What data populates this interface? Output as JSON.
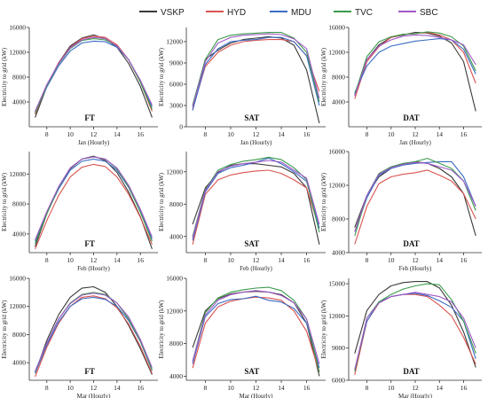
{
  "legend": [
    {
      "name": "VSKP",
      "color": "#3a3a3a"
    },
    {
      "name": "HYD",
      "color": "#d9534f"
    },
    {
      "name": "MDU",
      "color": "#3b6cc4"
    },
    {
      "name": "TVC",
      "color": "#3a9a4a"
    },
    {
      "name": "SBC",
      "color": "#a05ac8"
    }
  ],
  "chart_data": [
    {
      "type": "line",
      "tag": "FT",
      "xlabel": "Jan (Hourly)",
      "ylabel": "Electricity to grid (kW)",
      "x": [
        7,
        8,
        9,
        10,
        11,
        12,
        13,
        14,
        15,
        16,
        17
      ],
      "xlim": [
        6.5,
        17.5
      ],
      "ylim": [
        0,
        16000
      ],
      "xticks": [
        8,
        10,
        12,
        14,
        16
      ],
      "yticks": [
        4000,
        8000,
        12000,
        16000
      ],
      "series": [
        {
          "name": "VSKP",
          "values": [
            1500,
            6500,
            10300,
            13000,
            14300,
            14800,
            14200,
            12800,
            10200,
            6500,
            1500
          ]
        },
        {
          "name": "HYD",
          "values": [
            2000,
            6600,
            10300,
            12800,
            14200,
            14600,
            14400,
            13200,
            10800,
            7200,
            2500
          ]
        },
        {
          "name": "MDU",
          "values": [
            2300,
            6400,
            9800,
            12200,
            13500,
            13800,
            13700,
            12800,
            10800,
            7300,
            3200
          ]
        },
        {
          "name": "TVC",
          "values": [
            2200,
            6600,
            10100,
            12600,
            13900,
            14200,
            14000,
            13000,
            10800,
            7200,
            2800
          ]
        },
        {
          "name": "SBC",
          "values": [
            2500,
            6800,
            10200,
            12700,
            14000,
            14400,
            14200,
            13000,
            10800,
            7500,
            3500
          ]
        }
      ]
    },
    {
      "type": "line",
      "tag": "SAT",
      "xlabel": "Jan (Hourly)",
      "ylabel": "Electricity to grid (kW)",
      "x": [
        7,
        8,
        9,
        10,
        11,
        12,
        13,
        14,
        15,
        16,
        17
      ],
      "xlim": [
        6.5,
        17.5
      ],
      "ylim": [
        0,
        14000
      ],
      "xticks": [
        8,
        10,
        12,
        14,
        16
      ],
      "yticks": [
        0,
        3000,
        6000,
        9000,
        12000
      ],
      "series": [
        {
          "name": "VSKP",
          "values": [
            3000,
            9500,
            10800,
            11800,
            12300,
            12500,
            12700,
            12500,
            11500,
            8000,
            500
          ]
        },
        {
          "name": "HYD",
          "values": [
            2500,
            8500,
            10500,
            11500,
            12000,
            12200,
            12300,
            12300,
            12000,
            10000,
            5000
          ]
        },
        {
          "name": "MDU",
          "values": [
            2300,
            8800,
            11000,
            12000,
            12200,
            12300,
            12600,
            12600,
            12000,
            10000,
            3000
          ]
        },
        {
          "name": "TVC",
          "values": [
            3000,
            9500,
            12300,
            12900,
            13100,
            13200,
            13300,
            13300,
            12500,
            10500,
            3500
          ]
        },
        {
          "name": "SBC",
          "values": [
            2800,
            9200,
            11800,
            12600,
            12900,
            13000,
            13100,
            13000,
            12400,
            11000,
            4000
          ]
        }
      ]
    },
    {
      "type": "line",
      "tag": "DAT",
      "xlabel": "Jan (Hourly)",
      "ylabel": "Electricity to grid (kW)",
      "x": [
        7,
        8,
        9,
        10,
        11,
        12,
        13,
        14,
        15,
        16,
        17
      ],
      "xlim": [
        6.5,
        17.5
      ],
      "ylim": [
        0,
        16000
      ],
      "xticks": [
        8,
        10,
        12,
        14,
        16
      ],
      "yticks": [
        4000,
        8000,
        12000,
        16000
      ],
      "series": [
        {
          "name": "VSKP",
          "values": [
            5000,
            10800,
            13200,
            14400,
            14800,
            15200,
            15100,
            14600,
            13500,
            10500,
            2500
          ]
        },
        {
          "name": "HYD",
          "values": [
            4500,
            10500,
            12900,
            14400,
            14900,
            15000,
            15200,
            14800,
            14000,
            12000,
            7000
          ]
        },
        {
          "name": "MDU",
          "values": [
            5500,
            9800,
            12000,
            13000,
            13400,
            13800,
            14000,
            14200,
            14000,
            12500,
            8500
          ]
        },
        {
          "name": "TVC",
          "values": [
            5200,
            11300,
            13700,
            14500,
            14900,
            15000,
            15300,
            15100,
            14500,
            13000,
            9000
          ]
        },
        {
          "name": "SBC",
          "values": [
            5000,
            10800,
            13000,
            14000,
            14600,
            14800,
            14700,
            14400,
            14000,
            13200,
            10000
          ]
        }
      ]
    },
    {
      "type": "line",
      "tag": "FT",
      "xlabel": "Feb (Hourly)",
      "ylabel": "Electricity to grid (kW)",
      "x": [
        7,
        8,
        9,
        10,
        11,
        12,
        13,
        14,
        15,
        16,
        17
      ],
      "xlim": [
        6.5,
        17.5
      ],
      "ylim": [
        1500,
        15000
      ],
      "xticks": [
        8,
        10,
        12,
        14,
        16
      ],
      "yticks": [
        4000,
        8000,
        12000
      ],
      "series": [
        {
          "name": "VSKP",
          "values": [
            2300,
            6700,
            10200,
            12700,
            14000,
            14400,
            13800,
            12200,
            9600,
            6300,
            2000
          ]
        },
        {
          "name": "HYD",
          "values": [
            2000,
            5800,
            9100,
            11600,
            12900,
            13300,
            13000,
            11600,
            9300,
            6200,
            2600
          ]
        },
        {
          "name": "MDU",
          "values": [
            3000,
            6800,
            10000,
            12500,
            13700,
            14000,
            13700,
            12500,
            10200,
            7000,
            3300
          ]
        },
        {
          "name": "TVC",
          "values": [
            2700,
            6700,
            10200,
            12800,
            14000,
            14300,
            14000,
            12700,
            10300,
            6900,
            3000
          ]
        },
        {
          "name": "SBC",
          "values": [
            3200,
            7000,
            10300,
            12800,
            14000,
            14300,
            14000,
            12800,
            10500,
            7300,
            3600
          ]
        }
      ]
    },
    {
      "type": "line",
      "tag": "SAT",
      "xlabel": "Feb (Hourly)",
      "ylabel": "Electricity to grid (kW)",
      "x": [
        7,
        8,
        9,
        10,
        11,
        12,
        13,
        14,
        15,
        16,
        17
      ],
      "xlim": [
        6.5,
        17.5
      ],
      "ylim": [
        2000,
        14500
      ],
      "xticks": [
        8,
        10,
        12,
        14,
        16
      ],
      "yticks": [
        4000,
        8000,
        12000
      ],
      "series": [
        {
          "name": "VSKP",
          "values": [
            5500,
            10000,
            11900,
            12800,
            13000,
            13000,
            12800,
            12600,
            11800,
            10000,
            3000
          ]
        },
        {
          "name": "HYD",
          "values": [
            3000,
            9200,
            11000,
            11600,
            11900,
            12100,
            12200,
            11800,
            11000,
            10000,
            5000
          ]
        },
        {
          "name": "MDU",
          "values": [
            3500,
            9500,
            11800,
            12500,
            12800,
            13200,
            13700,
            13000,
            12000,
            10800,
            5000
          ]
        },
        {
          "name": "TVC",
          "values": [
            4000,
            9800,
            12200,
            12900,
            13300,
            13500,
            13800,
            13500,
            12500,
            11000,
            4500
          ]
        },
        {
          "name": "SBC",
          "values": [
            3800,
            9700,
            12000,
            12700,
            13000,
            13200,
            13400,
            13200,
            12200,
            11200,
            5500
          ]
        }
      ]
    },
    {
      "type": "line",
      "tag": "DAT",
      "xlabel": "Feb (Hourly)",
      "ylabel": "Electricity to grid (kW)",
      "x": [
        7,
        8,
        9,
        10,
        11,
        12,
        13,
        14,
        15,
        16,
        17
      ],
      "xlim": [
        6.5,
        17.5
      ],
      "ylim": [
        4000,
        16000
      ],
      "xticks": [
        8,
        10,
        12,
        14,
        16
      ],
      "yticks": [
        4000,
        8000,
        12000,
        16000
      ],
      "series": [
        {
          "name": "VSKP",
          "values": [
            7000,
            10800,
            13000,
            14000,
            14500,
            14800,
            14600,
            14000,
            13000,
            11000,
            6000
          ]
        },
        {
          "name": "HYD",
          "values": [
            5000,
            9500,
            12200,
            13000,
            13300,
            13500,
            13800,
            13200,
            12500,
            11000,
            8000
          ]
        },
        {
          "name": "MDU",
          "values": [
            6500,
            10500,
            13200,
            14000,
            14400,
            14600,
            14700,
            14800,
            14800,
            13000,
            9500
          ]
        },
        {
          "name": "TVC",
          "values": [
            6000,
            10800,
            13400,
            14200,
            14600,
            14800,
            15200,
            14600,
            14000,
            12500,
            9000
          ]
        },
        {
          "name": "SBC",
          "values": [
            6500,
            10800,
            13300,
            14100,
            14500,
            14700,
            14600,
            14200,
            13800,
            12500,
            9500
          ]
        }
      ]
    },
    {
      "type": "line",
      "tag": "FT",
      "xlabel": "Mar (Hourly)",
      "ylabel": "Electricity to grid (kW)",
      "x": [
        7,
        8,
        9,
        10,
        11,
        12,
        13,
        14,
        15,
        16,
        17
      ],
      "xlim": [
        6.5,
        17.5
      ],
      "ylim": [
        1500,
        16000
      ],
      "xticks": [
        8,
        10,
        12,
        14,
        16
      ],
      "yticks": [
        4000,
        8000,
        12000,
        16000
      ],
      "series": [
        {
          "name": "VSKP",
          "values": [
            2500,
            7200,
            10800,
            13300,
            14600,
            14800,
            14000,
            12000,
            9300,
            6000,
            2300
          ]
        },
        {
          "name": "HYD",
          "values": [
            2000,
            6200,
            9600,
            12000,
            13300,
            13500,
            13100,
            11800,
            9500,
            6300,
            2500
          ]
        },
        {
          "name": "MDU",
          "values": [
            2500,
            6500,
            9800,
            12000,
            13100,
            13300,
            13000,
            12000,
            10000,
            7000,
            2900
          ]
        },
        {
          "name": "TVC",
          "values": [
            2700,
            6800,
            10200,
            12500,
            13700,
            14000,
            13700,
            12500,
            10200,
            7100,
            3000
          ]
        },
        {
          "name": "SBC",
          "values": [
            2800,
            6800,
            10200,
            12400,
            13600,
            13900,
            13600,
            12500,
            10500,
            7300,
            3300
          ]
        }
      ]
    },
    {
      "type": "line",
      "tag": "SAT",
      "xlabel": "Mar (Hourly)",
      "ylabel": "Electricity to grid (kW)",
      "x": [
        7,
        8,
        9,
        10,
        11,
        12,
        13,
        14,
        15,
        16,
        17
      ],
      "xlim": [
        6.5,
        17.5
      ],
      "ylim": [
        3500,
        16000
      ],
      "xticks": [
        8,
        10,
        12,
        14,
        16
      ],
      "yticks": [
        4000,
        8000,
        12000,
        16000
      ],
      "series": [
        {
          "name": "VSKP",
          "values": [
            7500,
            12000,
            13500,
            14100,
            14300,
            14400,
            14300,
            14000,
            13000,
            10500,
            4000
          ]
        },
        {
          "name": "HYD",
          "values": [
            5000,
            10500,
            12500,
            13200,
            13500,
            13700,
            13600,
            13300,
            12000,
            9500,
            4500
          ]
        },
        {
          "name": "MDU",
          "values": [
            5500,
            11300,
            12900,
            13400,
            13500,
            13800,
            13300,
            13100,
            12300,
            10500,
            5000
          ]
        },
        {
          "name": "TVC",
          "values": [
            5800,
            11800,
            13600,
            14300,
            14600,
            14800,
            14900,
            14500,
            13300,
            11000,
            4500
          ]
        },
        {
          "name": "SBC",
          "values": [
            5800,
            11500,
            13300,
            14000,
            14300,
            14500,
            14300,
            13900,
            13000,
            11000,
            5500
          ]
        }
      ]
    },
    {
      "type": "line",
      "tag": "DAT",
      "xlabel": "Mar (Hourly)",
      "ylabel": "Electricity to grid (kW)",
      "x": [
        7,
        8,
        9,
        10,
        11,
        12,
        13,
        14,
        15,
        16,
        17
      ],
      "xlim": [
        6.5,
        17.5
      ],
      "ylim": [
        6000,
        15500
      ],
      "xticks": [
        8,
        10,
        12,
        14,
        16
      ],
      "yticks": [
        6000,
        9000,
        12000,
        15000
      ],
      "series": [
        {
          "name": "VSKP",
          "values": [
            8500,
            12500,
            14000,
            14800,
            15100,
            15200,
            15200,
            14600,
            13000,
            10500,
            7200
          ]
        },
        {
          "name": "HYD",
          "values": [
            6500,
            11500,
            13200,
            13800,
            14000,
            14000,
            13800,
            13000,
            12000,
            10000,
            7500
          ]
        },
        {
          "name": "MDU",
          "values": [
            7000,
            11500,
            13300,
            13800,
            14000,
            14100,
            13900,
            13400,
            12800,
            11500,
            8000
          ]
        },
        {
          "name": "TVC",
          "values": [
            6800,
            11800,
            13300,
            14000,
            14500,
            14800,
            15000,
            14900,
            13500,
            11500,
            8500
          ]
        },
        {
          "name": "SBC",
          "values": [
            7000,
            11800,
            13200,
            13800,
            14000,
            14200,
            14000,
            13800,
            13300,
            11800,
            9000
          ]
        }
      ]
    }
  ]
}
